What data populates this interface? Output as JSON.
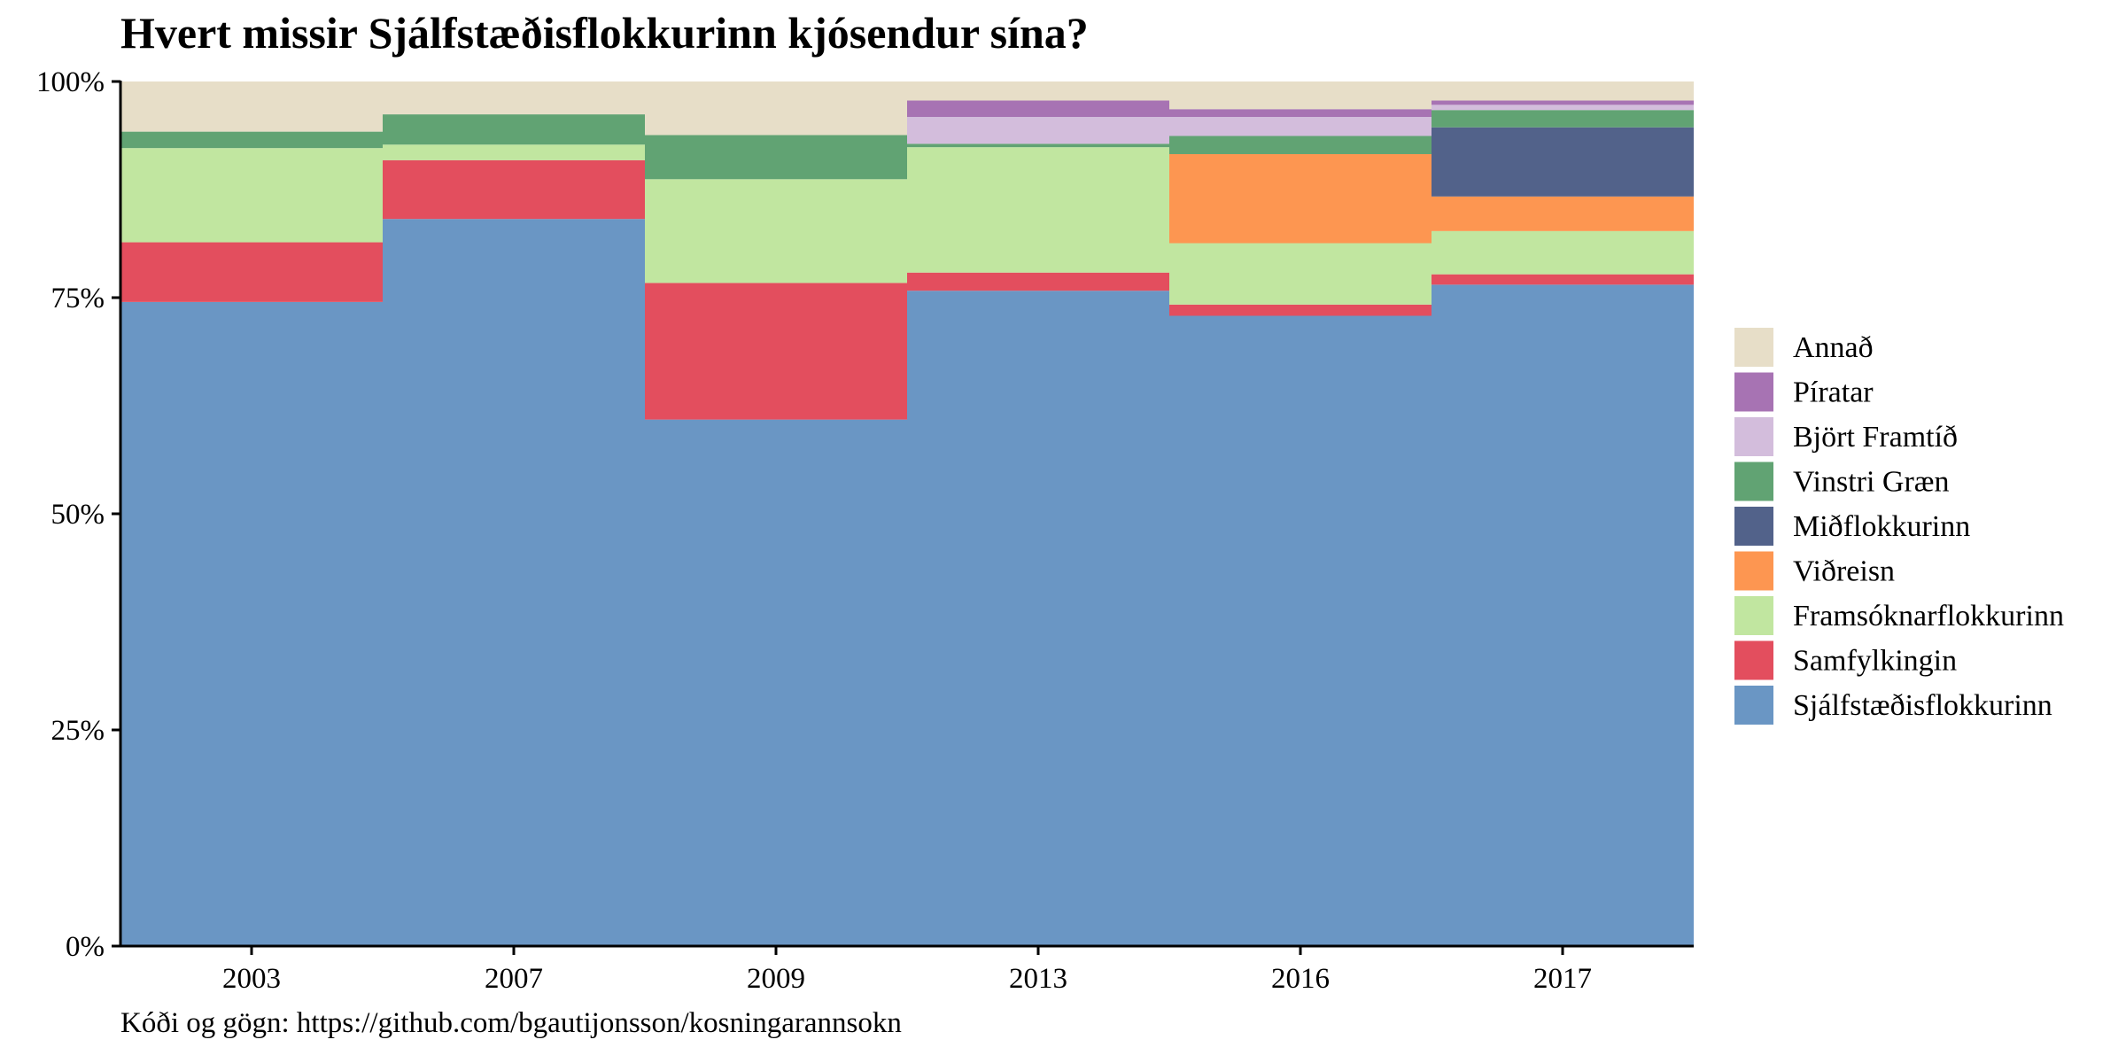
{
  "title": "Hvert missir Sjálfstæðisflokkurinn kjósendur sína?",
  "caption": "Kóði og gögn: https://github.com/bgautijonsson/kosningarannsokn",
  "chart_data": {
    "type": "bar",
    "stacked": true,
    "title": "Hvert missir Sjálfstæðisflokkurinn kjósendur sína?",
    "xlabel": "",
    "ylabel": "",
    "categories": [
      "2003",
      "2007",
      "2009",
      "2013",
      "2016",
      "2017"
    ],
    "yticks": [
      "0%",
      "25%",
      "50%",
      "75%",
      "100%"
    ],
    "ylim": [
      0,
      100
    ],
    "grid": false,
    "legend_position": "right",
    "series": [
      {
        "name": "Sjálfstæðisflokkurinn",
        "color": "#6a96c4",
        "values": [
          74.5,
          84.1,
          60.9,
          75.8,
          72.9,
          76.5
        ]
      },
      {
        "name": "Samfylkingin",
        "color": "#e34e5e",
        "values": [
          6.9,
          6.8,
          15.8,
          2.1,
          1.3,
          1.2
        ]
      },
      {
        "name": "Framsóknarflokkurinn",
        "color": "#c1e6a0",
        "values": [
          10.9,
          1.8,
          12.0,
          14.5,
          7.1,
          5.0
        ]
      },
      {
        "name": "Viðreisn",
        "color": "#fd9651",
        "values": [
          0,
          0,
          0,
          0,
          10.3,
          4.0
        ]
      },
      {
        "name": "Miðflokkurinn",
        "color": "#52628a",
        "values": [
          0,
          0,
          0,
          0,
          0,
          8.0
        ]
      },
      {
        "name": "Vinstri Græn",
        "color": "#61a373",
        "values": [
          1.9,
          3.5,
          5.1,
          0.4,
          2.1,
          2.0
        ]
      },
      {
        "name": "Björt Framtíð",
        "color": "#d3bddc",
        "values": [
          0,
          0,
          0,
          3.1,
          2.2,
          0.6
        ]
      },
      {
        "name": "Píratar",
        "color": "#a773b3",
        "values": [
          0,
          0,
          0,
          1.9,
          0.9,
          0.5
        ]
      },
      {
        "name": "Annað",
        "color": "#e7dec8",
        "values": [
          5.8,
          3.8,
          6.2,
          2.2,
          3.2,
          2.2
        ]
      }
    ],
    "legend_order": [
      "Annað",
      "Píratar",
      "Björt Framtíð",
      "Vinstri Græn",
      "Miðflokkurinn",
      "Viðreisn",
      "Framsóknarflokkurinn",
      "Samfylkingin",
      "Sjálfstæðisflokkurinn"
    ]
  }
}
